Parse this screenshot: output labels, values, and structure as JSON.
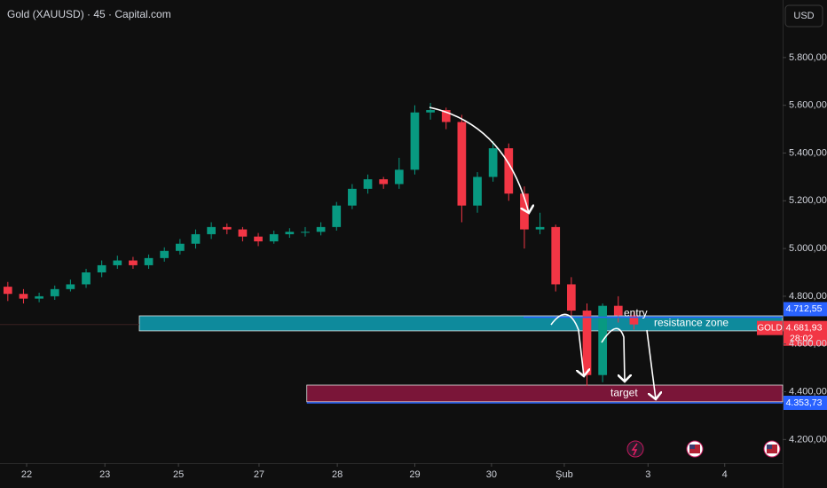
{
  "chart_data": {
    "type": "candlestick",
    "title": "Gold (XAUUSD) · 45 · Capital.com",
    "currency": "USD",
    "symbol": "GOLD",
    "countdown": "28:02",
    "x": [
      1,
      3,
      5,
      7,
      9,
      11,
      13,
      15,
      17,
      19,
      21,
      23,
      25,
      27,
      29,
      31,
      33,
      35,
      37,
      39,
      41,
      43,
      45,
      47,
      49,
      51,
      53,
      55,
      57,
      59,
      61,
      63,
      65,
      67,
      69,
      71,
      73,
      75,
      77,
      79,
      81
    ],
    "open": [
      4840,
      4810,
      4790,
      4800,
      4830,
      4850,
      4900,
      4930,
      4950,
      4930,
      4960,
      4990,
      5020,
      5060,
      5090,
      5080,
      5050,
      5030,
      5060,
      5070,
      5070,
      5090,
      5180,
      5250,
      5290,
      5270,
      5330,
      5570,
      5580,
      5530,
      5180,
      5300,
      5420,
      5230,
      5080,
      5090,
      4850,
      4740,
      4470,
      4760,
      4720
    ],
    "high": [
      4860,
      4830,
      4815,
      4845,
      4870,
      4915,
      4950,
      4970,
      4965,
      4975,
      5005,
      5040,
      5080,
      5110,
      5105,
      5090,
      5065,
      5075,
      5085,
      5090,
      5110,
      5195,
      5270,
      5310,
      5300,
      5380,
      5600,
      5610,
      5590,
      5560,
      5320,
      5450,
      5440,
      5260,
      5150,
      5100,
      4880,
      4770,
      4770,
      4800,
      4740
    ],
    "low": [
      4780,
      4770,
      4775,
      4785,
      4820,
      4835,
      4880,
      4915,
      4915,
      4915,
      4945,
      4975,
      5000,
      5040,
      5060,
      5030,
      5010,
      5020,
      5045,
      5050,
      5055,
      5075,
      5165,
      5230,
      5250,
      5250,
      5310,
      5540,
      5500,
      5110,
      5150,
      5280,
      5200,
      5000,
      5060,
      4820,
      4720,
      4425,
      4440,
      4690,
      4660
    ],
    "close": [
      4810,
      4790,
      4800,
      4830,
      4850,
      4900,
      4930,
      4950,
      4930,
      4960,
      4990,
      5020,
      5060,
      5090,
      5080,
      5050,
      5030,
      5060,
      5070,
      5070,
      5090,
      5180,
      5250,
      5290,
      5270,
      5330,
      5570,
      5580,
      5530,
      5180,
      5300,
      5420,
      5230,
      5080,
      5090,
      4850,
      4740,
      4470,
      4760,
      4720,
      4681.93
    ],
    "up_color": "#089981",
    "down_color": "#f23645",
    "xlim": [
      0,
      100
    ],
    "ylim": [
      4101,
      6041
    ],
    "xticks": [
      {
        "value": 3.4,
        "label": "22"
      },
      {
        "value": 13.4,
        "label": "23"
      },
      {
        "value": 22.8,
        "label": "25"
      },
      {
        "value": 33.1,
        "label": "27"
      },
      {
        "value": 43.1,
        "label": "28"
      },
      {
        "value": 53,
        "label": "29"
      },
      {
        "value": 62.8,
        "label": "30"
      },
      {
        "value": 72.1,
        "label": "Şub"
      },
      {
        "value": 82.8,
        "label": "3"
      },
      {
        "value": 92.6,
        "label": "4"
      }
    ],
    "yticks": [
      {
        "value": 4200,
        "label": "4.200,00"
      },
      {
        "value": 4400,
        "label": "4.400,00"
      },
      {
        "value": 4600,
        "label": "4.600,00"
      },
      {
        "value": 4800,
        "label": "4.800,00"
      },
      {
        "value": 5000,
        "label": "5.000,00"
      },
      {
        "value": 5200,
        "label": "5.200,00"
      },
      {
        "value": 5400,
        "label": "5.400,00"
      },
      {
        "value": 5600,
        "label": "5.600,00"
      },
      {
        "value": 5800,
        "label": "5.800,00"
      }
    ],
    "zones": [
      {
        "name": "resistance zone",
        "ymin": 4655,
        "ymax": 4718,
        "x_start": 17.8,
        "color": "#0e8a9c"
      },
      {
        "name": "target",
        "ymin": 4358,
        "ymax": 4428,
        "x_start": 39.2,
        "color": "#7a1538"
      }
    ],
    "price_lines": [
      {
        "value": 4712.55,
        "label": "4.712,55",
        "name": "entry",
        "color": "#2962ff"
      },
      {
        "value": 4353.73,
        "label": "4.353,73",
        "color": "#2962ff"
      }
    ],
    "last_price": {
      "value": 4681.93,
      "label": "4.681,93",
      "color": "#f23645"
    }
  }
}
